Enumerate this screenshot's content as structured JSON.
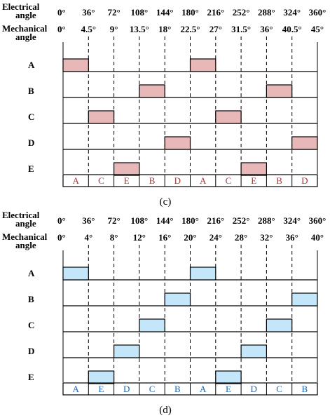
{
  "colors": {
    "pulse_c_fill": "#e8b8b8",
    "seq_c_text": "#a03a3a",
    "pulse_d_fill": "#c4e6fa",
    "seq_d_text": "#1a66b0",
    "line": "#000000"
  },
  "panels": [
    {
      "id": "c",
      "caption": "(c)",
      "electrical_label": [
        "Electrical",
        "angle"
      ],
      "mechanical_label": [
        "Mechanical",
        "angle"
      ],
      "electrical_angles": [
        "0°",
        "36°",
        "72°",
        "108°",
        "144°",
        "180°",
        "216°",
        "252°",
        "288°",
        "324°",
        "360°"
      ],
      "mechanical_angles": [
        "0°",
        "4.5°",
        "9°",
        "13.5°",
        "18°",
        "22.5°",
        "27°",
        "31.5°",
        "36°",
        "40.5°",
        "45°"
      ],
      "rows": [
        {
          "label": "A",
          "pulses": [
            0,
            5
          ]
        },
        {
          "label": "B",
          "pulses": [
            3,
            8
          ]
        },
        {
          "label": "C",
          "pulses": [
            1,
            6
          ]
        },
        {
          "label": "D",
          "pulses": [
            4,
            9
          ]
        },
        {
          "label": "E",
          "pulses": [
            2,
            7
          ]
        }
      ],
      "sequence": [
        "A",
        "C",
        "E",
        "B",
        "D",
        "A",
        "C",
        "E",
        "B",
        "D"
      ]
    },
    {
      "id": "d",
      "caption": "(d)",
      "electrical_label": [
        "Electrical",
        "angle"
      ],
      "mechanical_label": [
        "Mechanical",
        "angle"
      ],
      "electrical_angles": [
        "0°",
        "36°",
        "72°",
        "108°",
        "144°",
        "180°",
        "216°",
        "252°",
        "288°",
        "324°",
        "360°"
      ],
      "mechanical_angles": [
        "0°",
        "4°",
        "8°",
        "12°",
        "16°",
        "20°",
        "24°",
        "28°",
        "32°",
        "36°",
        "40°"
      ],
      "rows": [
        {
          "label": "A",
          "pulses": [
            0,
            5
          ]
        },
        {
          "label": "B",
          "pulses": [
            4,
            9
          ]
        },
        {
          "label": "C",
          "pulses": [
            3,
            8
          ]
        },
        {
          "label": "D",
          "pulses": [
            2,
            7
          ]
        },
        {
          "label": "E",
          "pulses": [
            1,
            6
          ]
        }
      ],
      "sequence": [
        "A",
        "E",
        "D",
        "C",
        "B",
        "A",
        "E",
        "D",
        "C",
        "B"
      ]
    }
  ]
}
